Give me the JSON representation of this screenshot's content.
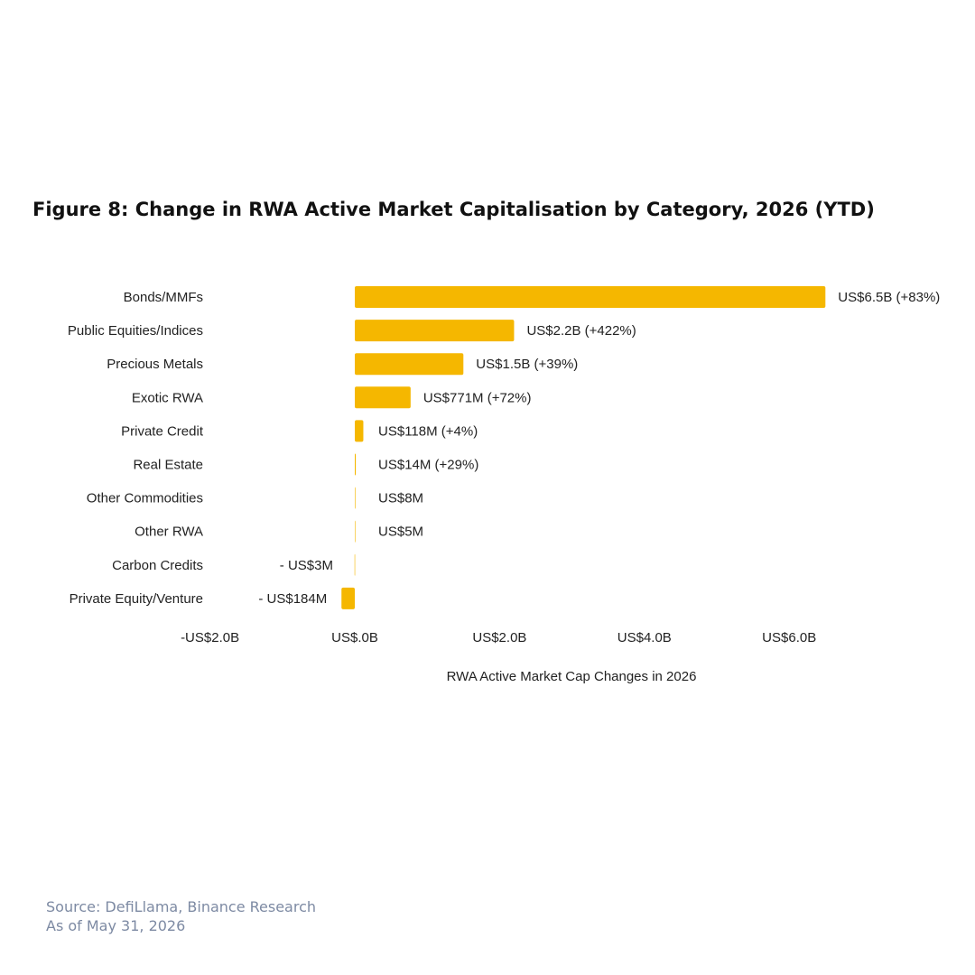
{
  "title": "Figure 8: Change in RWA Active Market Capitalisation by Category, 2026 (YTD)",
  "footer": {
    "source": "Source: DefiLlama, Binance Research",
    "date": "As of May 31, 2026"
  },
  "colors": {
    "bar": "#F5B700",
    "text": "#222222",
    "footer": "#7d8aa3"
  },
  "chart_data": {
    "type": "bar",
    "orientation": "horizontal",
    "xlabel": "RWA Active Market Cap Changes in 2026",
    "xlim": [
      -2.0,
      6.5
    ],
    "units": "US$ billions",
    "grid": false,
    "legend": "none",
    "categories": [
      "Bonds/MMFs",
      "Public Equities/Indices",
      "Precious Metals",
      "Exotic RWA",
      "Private Credit",
      "Real Estate",
      "Other Commodities",
      "Other RWA",
      "Carbon Credits",
      "Private Equity/Venture"
    ],
    "values": [
      6.5,
      2.2,
      1.5,
      0.771,
      0.118,
      0.014,
      0.008,
      0.005,
      -0.003,
      -0.184
    ],
    "data_labels": [
      "US$6.5B (+83%)",
      "US$2.2B (+422%)",
      "US$1.5B (+39%)",
      "US$771M (+72%)",
      "US$118M (+4%)",
      "US$14M (+29%)",
      "US$8M",
      "US$5M",
      "- US$3M",
      "- US$184M"
    ],
    "ticks": [
      -2.0,
      0.0,
      2.0,
      4.0,
      6.0
    ],
    "tick_labels": [
      "-US$2.0B",
      "US$.0B",
      "US$2.0B",
      "US$4.0B",
      "US$6.0B"
    ]
  }
}
